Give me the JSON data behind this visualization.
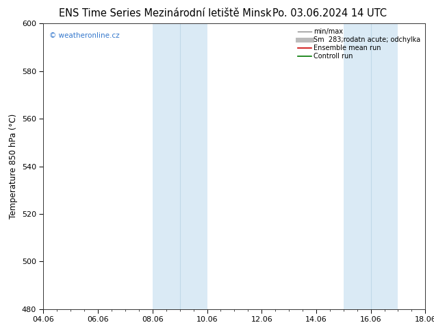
{
  "title_left": "ENS Time Series Mezinárodní letiště Minsk",
  "title_right": "Po. 03.06.2024 14 UTC",
  "ylabel": "Temperature 850 hPa (°C)",
  "ylim": [
    480,
    600
  ],
  "yticks": [
    480,
    500,
    520,
    540,
    560,
    580,
    600
  ],
  "xtick_labels": [
    "04.06",
    "06.06",
    "08.06",
    "10.06",
    "12.06",
    "14.06",
    "16.06",
    "18.06"
  ],
  "xtick_positions": [
    0,
    2,
    4,
    6,
    8,
    10,
    12,
    14
  ],
  "xlim": [
    0,
    14
  ],
  "shaded_bands": [
    {
      "x_start": 4.0,
      "x_end": 5.0,
      "color": "#daeaf5"
    },
    {
      "x_start": 5.0,
      "x_end": 6.0,
      "color": "#daeaf5"
    },
    {
      "x_start": 11.0,
      "x_end": 12.0,
      "color": "#daeaf5"
    },
    {
      "x_start": 12.0,
      "x_end": 13.0,
      "color": "#daeaf5"
    }
  ],
  "band_dividers": [
    5.0,
    12.0
  ],
  "watermark": "© weatheronline.cz",
  "legend_entries": [
    {
      "label": "min/max",
      "color": "#888888",
      "lw": 1.0
    },
    {
      "label": "Sm  283;rodatn acute; odchylka",
      "color": "#bbbbbb",
      "lw": 5
    },
    {
      "label": "Ensemble mean run",
      "color": "#cc0000",
      "lw": 1.2
    },
    {
      "label": "Controll run",
      "color": "#007700",
      "lw": 1.2
    }
  ],
  "bg_color": "#ffffff",
  "title_fontsize": 10.5,
  "tick_fontsize": 8,
  "ylabel_fontsize": 8.5,
  "watermark_color": "#3377cc",
  "watermark_fontsize": 7.5,
  "legend_fontsize": 7.0
}
